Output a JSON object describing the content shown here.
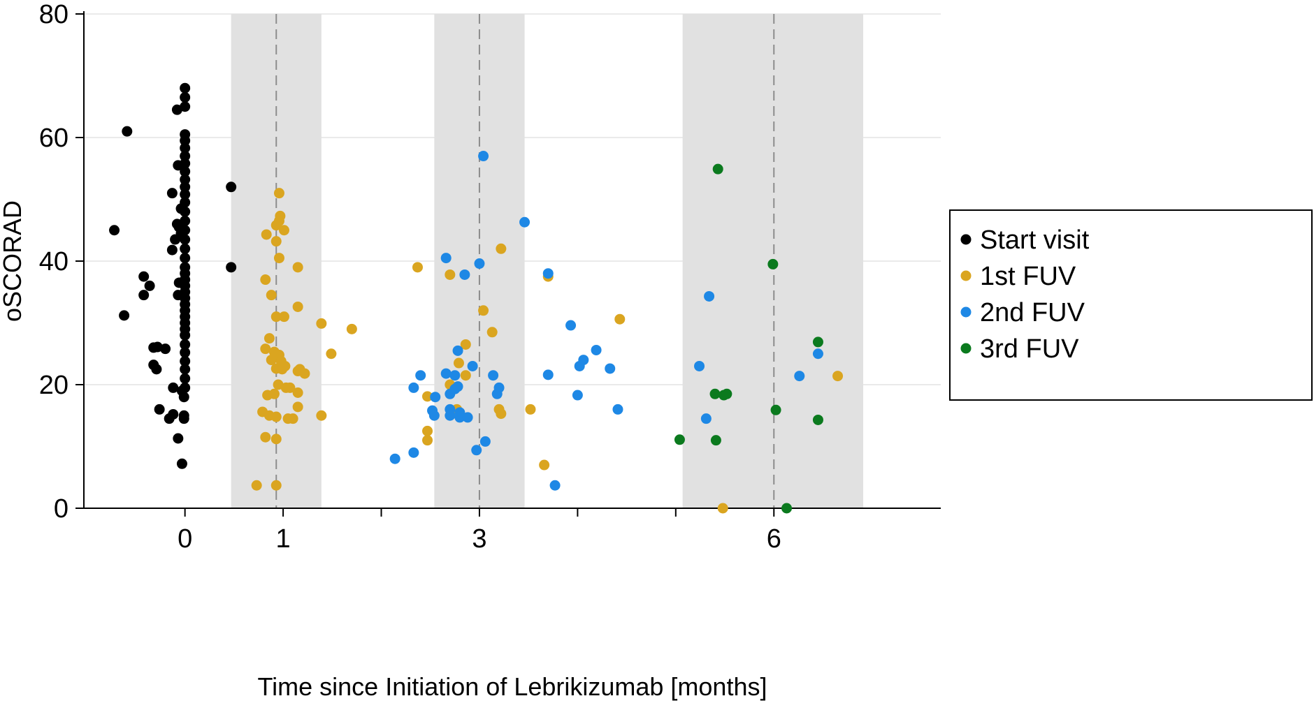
{
  "chart_data": {
    "type": "scatter",
    "xlabel": "Time since Initiation of Lebrikizumab [months]",
    "ylabel": "oSCORAD",
    "ylim": [
      0,
      80
    ],
    "xlim": [
      -1.03,
      7.7
    ],
    "y_ticks": [
      0,
      20,
      40,
      60,
      80
    ],
    "x_ticks": [
      {
        "value": 0,
        "label": "0"
      },
      {
        "value": 1,
        "label": "1"
      },
      {
        "value": 2,
        "label": ""
      },
      {
        "value": 3,
        "label": "3"
      },
      {
        "value": 4,
        "label": ""
      },
      {
        "value": 5,
        "label": ""
      },
      {
        "value": 6,
        "label": "6"
      }
    ],
    "grid": true,
    "legend_position": "right",
    "shaded_bands": [
      {
        "from": 0.47,
        "to": 1.39,
        "center": 0.93
      },
      {
        "from": 2.54,
        "to": 3.46,
        "center": 3.0
      },
      {
        "from": 5.07,
        "to": 6.91,
        "center": 6.0
      }
    ],
    "series": [
      {
        "name": "Start visit",
        "color": "#000000",
        "points": [
          [
            -0.72,
            45
          ],
          [
            -0.59,
            61
          ],
          [
            -0.62,
            31.2
          ],
          [
            -0.42,
            37.5
          ],
          [
            -0.42,
            34.5
          ],
          [
            -0.36,
            36
          ],
          [
            -0.32,
            26
          ],
          [
            -0.28,
            26.1
          ],
          [
            -0.32,
            23.2
          ],
          [
            -0.29,
            22.5
          ],
          [
            -0.26,
            16
          ],
          [
            -0.2,
            25.8
          ],
          [
            -0.16,
            14.5
          ],
          [
            -0.12,
            15.2
          ],
          [
            -0.12,
            19.5
          ],
          [
            -0.07,
            11.3
          ],
          [
            -0.13,
            51
          ],
          [
            -0.13,
            41.8
          ],
          [
            -0.1,
            43.5
          ],
          [
            -0.08,
            46
          ],
          [
            -0.06,
            45.5
          ],
          [
            -0.07,
            55.5
          ],
          [
            -0.08,
            64.5
          ],
          [
            -0.06,
            36.5
          ],
          [
            -0.07,
            34.5
          ],
          [
            -0.04,
            44.5
          ],
          [
            -0.04,
            48.5
          ],
          [
            -0.03,
            7.2
          ],
          [
            -0.03,
            19
          ],
          [
            -0.01,
            18
          ],
          [
            -0.01,
            15
          ],
          [
            -0.01,
            14.5
          ],
          [
            0.47,
            52
          ],
          [
            0.47,
            39
          ],
          [
            0.0,
            68
          ],
          [
            0.0,
            66.5
          ],
          [
            0.0,
            65
          ],
          [
            0.0,
            60.5
          ],
          [
            0.0,
            59.5
          ],
          [
            0.0,
            58.3
          ],
          [
            0.0,
            57
          ],
          [
            0.0,
            55.8
          ],
          [
            0.0,
            54.5
          ],
          [
            0.0,
            53.2
          ],
          [
            0.0,
            52
          ],
          [
            0.0,
            50.8
          ],
          [
            0.0,
            49.5
          ],
          [
            0.0,
            48
          ],
          [
            0.0,
            46.5
          ],
          [
            0.0,
            45
          ],
          [
            0.0,
            43.5
          ],
          [
            0.0,
            42
          ],
          [
            0.0,
            40.5
          ],
          [
            0.0,
            39
          ],
          [
            0.0,
            38
          ],
          [
            0.0,
            37
          ],
          [
            0.0,
            36
          ],
          [
            0.0,
            35
          ],
          [
            0.0,
            34
          ],
          [
            0.0,
            33
          ],
          [
            0.0,
            32
          ],
          [
            0.0,
            31
          ],
          [
            0.0,
            30
          ],
          [
            0.0,
            29
          ],
          [
            0.0,
            28
          ],
          [
            0.0,
            26.5
          ],
          [
            0.0,
            25.2
          ],
          [
            0.0,
            23.8
          ],
          [
            0.0,
            22.5
          ],
          [
            0.0,
            21
          ],
          [
            0.0,
            19.5
          ]
        ]
      },
      {
        "name": "1st FUV",
        "color": "#DAA520",
        "points": [
          [
            0.73,
            3.7
          ],
          [
            0.79,
            15.6
          ],
          [
            0.82,
            11.5
          ],
          [
            0.82,
            25.8
          ],
          [
            0.82,
            37
          ],
          [
            0.83,
            44.3
          ],
          [
            0.84,
            18.3
          ],
          [
            0.86,
            15
          ],
          [
            0.86,
            27.5
          ],
          [
            0.88,
            24
          ],
          [
            0.88,
            34.5
          ],
          [
            0.91,
            18.5
          ],
          [
            0.91,
            25.3
          ],
          [
            0.93,
            3.7
          ],
          [
            0.93,
            11.2
          ],
          [
            0.93,
            14.8
          ],
          [
            0.93,
            22.6
          ],
          [
            0.93,
            31
          ],
          [
            0.93,
            43.2
          ],
          [
            0.93,
            45.8
          ],
          [
            0.95,
            20
          ],
          [
            0.96,
            51
          ],
          [
            0.96,
            46.5
          ],
          [
            0.96,
            40.5
          ],
          [
            0.96,
            24.8
          ],
          [
            0.97,
            47.3
          ],
          [
            0.98,
            23.8
          ],
          [
            0.99,
            22.5
          ],
          [
            1.01,
            31
          ],
          [
            1.01,
            45
          ],
          [
            1.02,
            23
          ],
          [
            1.03,
            19.5
          ],
          [
            1.05,
            14.5
          ],
          [
            1.07,
            19.5
          ],
          [
            1.1,
            14.5
          ],
          [
            1.15,
            18.7
          ],
          [
            1.15,
            16.4
          ],
          [
            1.15,
            22.2
          ],
          [
            1.15,
            32.6
          ],
          [
            1.15,
            39
          ],
          [
            1.17,
            22.5
          ],
          [
            1.22,
            21.8
          ],
          [
            1.39,
            29.9
          ],
          [
            1.39,
            15
          ],
          [
            1.49,
            25
          ],
          [
            1.7,
            29
          ],
          [
            2.37,
            39
          ],
          [
            2.47,
            12.5
          ],
          [
            2.47,
            11
          ],
          [
            2.47,
            18.1
          ],
          [
            2.7,
            37.8
          ],
          [
            2.7,
            20
          ],
          [
            2.77,
            16
          ],
          [
            2.79,
            23.5
          ],
          [
            2.86,
            26.5
          ],
          [
            2.86,
            21.5
          ],
          [
            3.04,
            32
          ],
          [
            3.13,
            28.5
          ],
          [
            3.2,
            16
          ],
          [
            3.22,
            15.3
          ],
          [
            3.22,
            42
          ],
          [
            3.52,
            16
          ],
          [
            3.66,
            7
          ],
          [
            3.7,
            37.5
          ],
          [
            4.43,
            30.6
          ],
          [
            5.48,
            0
          ],
          [
            6.65,
            21.4
          ]
        ]
      },
      {
        "name": "2nd FUV",
        "color": "#1E88E5",
        "points": [
          [
            2.14,
            8
          ],
          [
            2.33,
            9
          ],
          [
            2.33,
            19.5
          ],
          [
            2.4,
            21.5
          ],
          [
            2.52,
            15.8
          ],
          [
            2.54,
            15
          ],
          [
            2.55,
            18
          ],
          [
            2.66,
            21.8
          ],
          [
            2.66,
            40.5
          ],
          [
            2.7,
            16
          ],
          [
            2.7,
            15
          ],
          [
            2.7,
            18.5
          ],
          [
            2.75,
            21.5
          ],
          [
            2.75,
            19.3
          ],
          [
            2.78,
            19.7
          ],
          [
            2.78,
            25.5
          ],
          [
            2.8,
            14.7
          ],
          [
            2.8,
            15.5
          ],
          [
            2.85,
            37.8
          ],
          [
            2.88,
            14.7
          ],
          [
            2.93,
            23
          ],
          [
            2.97,
            9.4
          ],
          [
            3.0,
            39.6
          ],
          [
            3.04,
            57
          ],
          [
            3.06,
            10.8
          ],
          [
            3.14,
            21.5
          ],
          [
            3.18,
            18.5
          ],
          [
            3.2,
            19.5
          ],
          [
            3.46,
            46.3
          ],
          [
            3.7,
            38
          ],
          [
            3.7,
            21.6
          ],
          [
            3.77,
            3.7
          ],
          [
            3.93,
            29.6
          ],
          [
            4.0,
            18.3
          ],
          [
            4.02,
            23
          ],
          [
            4.06,
            24
          ],
          [
            4.19,
            25.6
          ],
          [
            4.33,
            22.6
          ],
          [
            4.41,
            16
          ],
          [
            5.24,
            23
          ],
          [
            5.31,
            14.5
          ],
          [
            5.34,
            34.3
          ],
          [
            6.26,
            21.4
          ],
          [
            6.45,
            25
          ]
        ]
      },
      {
        "name": "3rd FUV",
        "color": "#0B7A1E",
        "points": [
          [
            5.04,
            11.1
          ],
          [
            5.4,
            18.5
          ],
          [
            5.41,
            11
          ],
          [
            5.43,
            54.9
          ],
          [
            5.49,
            18.3
          ],
          [
            5.52,
            18.5
          ],
          [
            5.99,
            39.5
          ],
          [
            6.02,
            15.9
          ],
          [
            6.13,
            0
          ],
          [
            6.45,
            14.3
          ],
          [
            6.45,
            26.9
          ]
        ]
      }
    ]
  }
}
